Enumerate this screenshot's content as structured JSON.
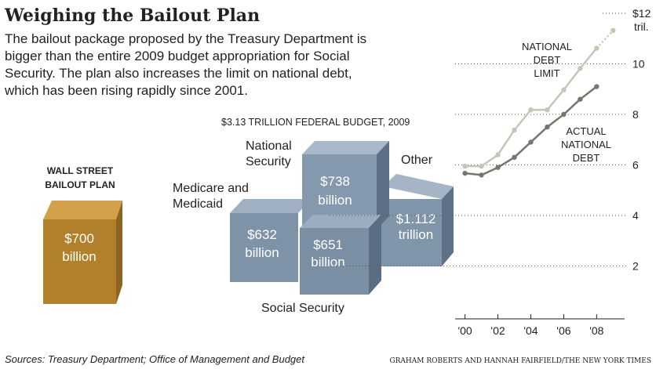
{
  "header": {
    "title": "Weighing the Bailout Plan",
    "intro": [
      "The bailout package proposed by the Treasury Department is",
      "bigger than the entire 2009 budget appropriation for Social",
      "Security. The plan also increases the limit on national debt,",
      "which has been rising rapidly since 2001."
    ]
  },
  "bailout": {
    "heading": [
      "WALL STREET",
      "BAILOUT PLAN"
    ],
    "amount": [
      "$700",
      "billion"
    ]
  },
  "budget": {
    "heading": "$3.13 TRILLION FEDERAL BUDGET, 2009",
    "medicare": {
      "name": [
        "Medicare and",
        "Medicaid"
      ],
      "amount": [
        "$632",
        "billion"
      ]
    },
    "national_security": {
      "name": [
        "National",
        "Security"
      ],
      "amount": [
        "$738",
        "billion"
      ]
    },
    "other": {
      "name": "Other",
      "amount": [
        "$1.112",
        "trillion"
      ]
    },
    "social_security": {
      "name": "Social Security",
      "amount": [
        "$651",
        "billion"
      ]
    }
  },
  "chart_data": {
    "type": "line",
    "x": [
      2000,
      2001,
      2002,
      2003,
      2004,
      2005,
      2006,
      2007,
      2008,
      2009
    ],
    "series": [
      {
        "name": [
          "NATIONAL",
          "DEBT",
          "LIMIT"
        ],
        "color": "#c6c6b8",
        "values": [
          5.95,
          5.95,
          6.4,
          7.38,
          8.18,
          8.18,
          8.97,
          9.82,
          10.62,
          11.32
        ],
        "dotted_last": true
      },
      {
        "name": [
          "ACTUAL",
          "NATIONAL",
          "DEBT"
        ],
        "color": "#76766e",
        "values": [
          5.67,
          5.6,
          5.9,
          6.3,
          6.9,
          7.5,
          8.0,
          8.6,
          9.1,
          null
        ]
      }
    ],
    "xlim": [
      1999.4,
      2009.7
    ],
    "ylim": [
      0,
      12
    ],
    "xticks": [
      {
        "value": 2000,
        "label": "'00"
      },
      {
        "value": 2002,
        "label": "'02"
      },
      {
        "value": 2004,
        "label": "'04"
      },
      {
        "value": 2006,
        "label": "'06"
      },
      {
        "value": 2008,
        "label": "'08"
      }
    ],
    "yticks": [
      2,
      4,
      6,
      8,
      10,
      {
        "value": 12,
        "label": "$12"
      }
    ],
    "y_unit": "tril.",
    "grid": true
  },
  "footer": {
    "source": "Sources: Treasury Department; Office of Management and Budget",
    "credit": "GRAHAM ROBERTS AND HANNAH FAIRFIELD/THE NEW YORK TIMES"
  }
}
